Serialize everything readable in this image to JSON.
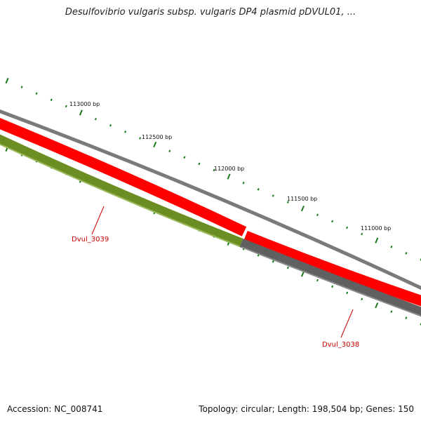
{
  "title": "Desulfovibrio vulgaris subsp. vulgaris DP4 plasmid pDVUL01, ...",
  "footer": {
    "accession_label": "Accession: NC_008741",
    "summary": "Topology: circular; Length: 198,504 bp; Genes: 150"
  },
  "scale": {
    "tick_labels": [
      "113000 bp",
      "112500 bp",
      "112000 bp",
      "111500 bp",
      "111000 bp"
    ]
  },
  "genes": [
    {
      "name": "Dvul_3039",
      "strand": "minus",
      "color": "#6b8e23"
    },
    {
      "name": "Dvul_3038",
      "strand": "plus",
      "color": "#ff0000"
    }
  ],
  "colors": {
    "backbone": "#808080",
    "forward_feature": "#ff0000",
    "reverse_feature_1": "#6b8e23",
    "reverse_feature_2": "#606060",
    "tick": "#1a7a1a",
    "gene_label": "#cc0000"
  }
}
